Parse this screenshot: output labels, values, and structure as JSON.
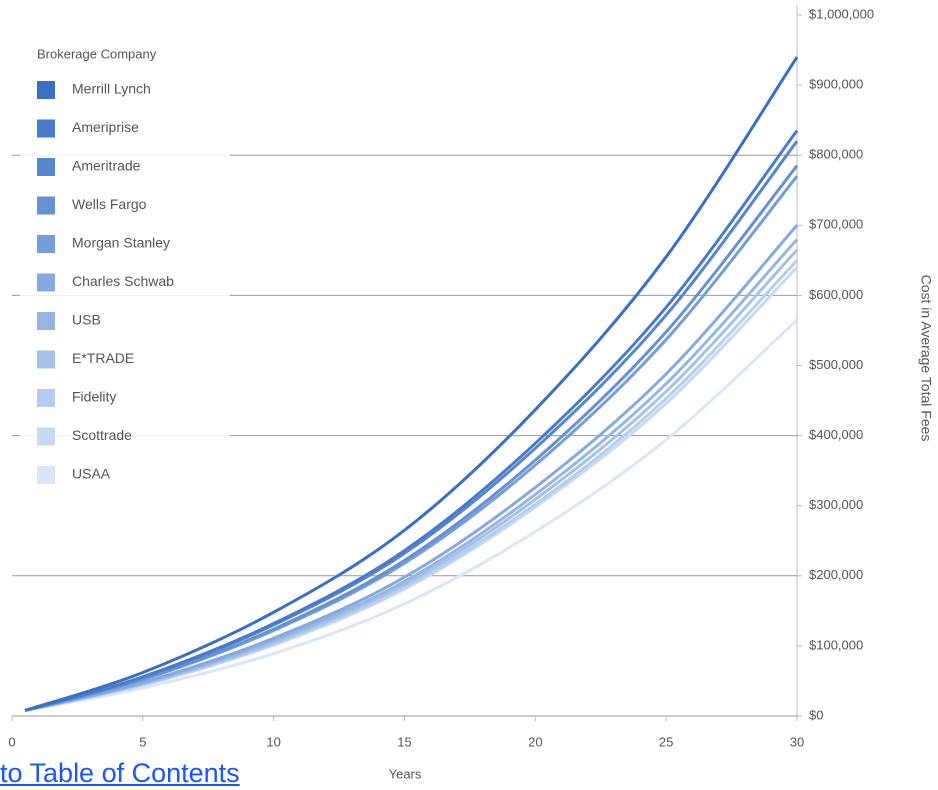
{
  "chart_data": {
    "type": "line",
    "legend_title": "Brokerage Company",
    "x_label": "Years",
    "y_label": "Cost in Average Total Fees",
    "x": [
      0.5,
      5,
      10,
      15,
      20,
      25,
      30
    ],
    "series": [
      {
        "name": "Merrill Lynch",
        "color": "#3b6fc2",
        "values": [
          8000,
          62000,
          148000,
          265000,
          437000,
          655000,
          940000
        ]
      },
      {
        "name": "Ameriprise",
        "color": "#4a7bc8",
        "values": [
          8000,
          56000,
          132000,
          236000,
          389000,
          583000,
          835000
        ]
      },
      {
        "name": "Ameritrade",
        "color": "#5886ce",
        "values": [
          8000,
          55000,
          130000,
          232000,
          382000,
          572000,
          820000
        ]
      },
      {
        "name": "Wells Fargo",
        "color": "#6791d3",
        "values": [
          8000,
          53000,
          124000,
          222000,
          365000,
          548000,
          785000
        ]
      },
      {
        "name": "Morgan Stanley",
        "color": "#769dd8",
        "values": [
          8000,
          52000,
          122000,
          218000,
          358000,
          537000,
          770000
        ]
      },
      {
        "name": "Charles Schwab",
        "color": "#86a9de",
        "values": [
          8000,
          48000,
          111000,
          198000,
          326000,
          488000,
          700000
        ]
      },
      {
        "name": "USB",
        "color": "#96b5e3",
        "values": [
          8000,
          47000,
          108000,
          192000,
          316000,
          474000,
          680000
        ]
      },
      {
        "name": "E*TRADE",
        "color": "#a6c1e8",
        "values": [
          8000,
          46000,
          105000,
          188000,
          309000,
          463000,
          665000
        ]
      },
      {
        "name": "Fidelity",
        "color": "#b7cdee",
        "values": [
          8000,
          45000,
          103000,
          184000,
          302000,
          453000,
          650000
        ]
      },
      {
        "name": "Scottrade",
        "color": "#c8daf3",
        "values": [
          8000,
          44000,
          101000,
          181000,
          298000,
          446000,
          640000
        ]
      },
      {
        "name": "USAA",
        "color": "#dae6f8",
        "values": [
          8000,
          40000,
          89000,
          160000,
          263000,
          394000,
          565000
        ]
      }
    ],
    "xlim": [
      0,
      30
    ],
    "xticks": [
      0,
      5,
      10,
      15,
      20,
      25,
      30
    ],
    "ylim": [
      0,
      1000000
    ],
    "yticks": [
      {
        "value": 0,
        "label": "$0"
      },
      {
        "value": 100000,
        "label": "$100,000"
      },
      {
        "value": 200000,
        "label": "$200,000"
      },
      {
        "value": 300000,
        "label": "$300,000"
      },
      {
        "value": 400000,
        "label": "$400,000"
      },
      {
        "value": 500000,
        "label": "$500,000"
      },
      {
        "value": 600000,
        "label": "$600,000"
      },
      {
        "value": 700000,
        "label": "$700,000"
      },
      {
        "value": 800000,
        "label": "$800,000"
      },
      {
        "value": 900000,
        "label": "$900,000"
      },
      {
        "value": 1000000,
        "label": "$1,000,000"
      }
    ],
    "grid_values": [
      200000,
      400000,
      600000,
      800000
    ],
    "y_axis_side": "right",
    "legend": "top-left"
  },
  "link": "to Table of Contents"
}
